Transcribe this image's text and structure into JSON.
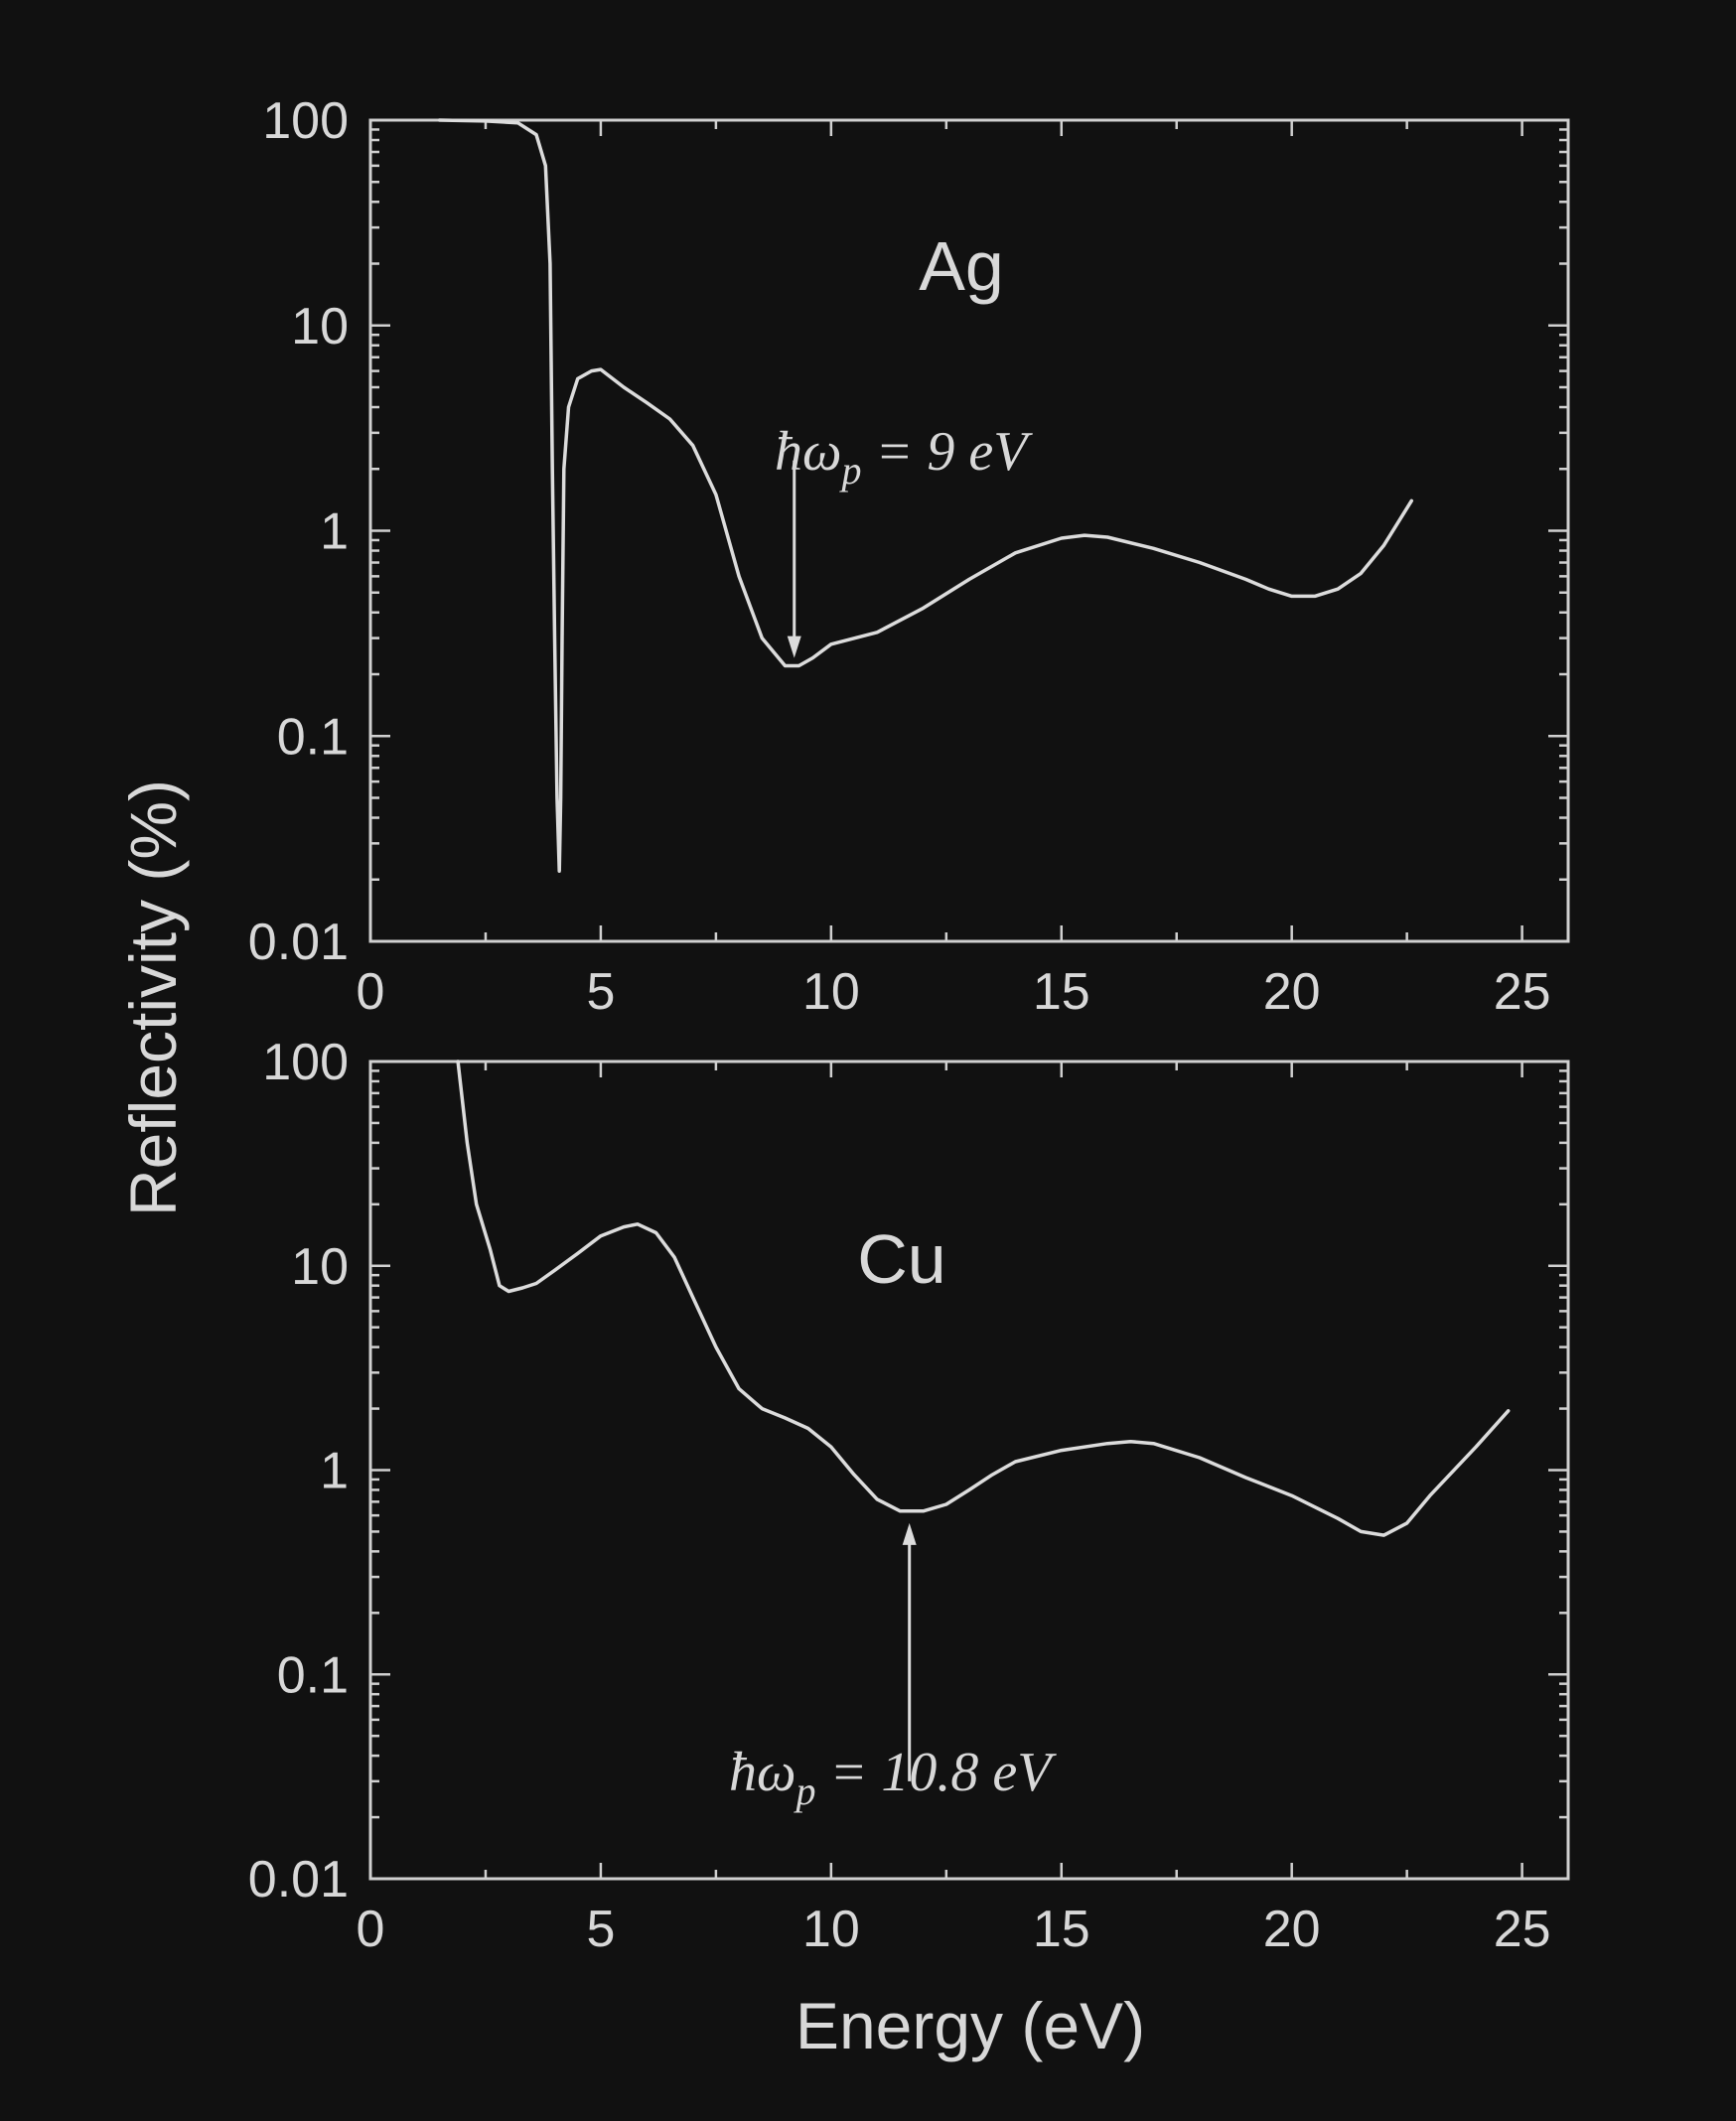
{
  "chart_data": [
    {
      "type": "line",
      "title": "",
      "panel_label": "Ag",
      "xlabel": "Energy (eV)",
      "ylabel": "Reflectivity (%)",
      "xlim": [
        0,
        26
      ],
      "ylim": [
        0.01,
        100
      ],
      "yscale": "log",
      "grid": false,
      "xticks": [
        "0",
        "5",
        "10",
        "15",
        "20",
        "25"
      ],
      "yticks": [
        "0.01",
        "0.1",
        "1",
        "10",
        "100"
      ],
      "annotation": {
        "text_main": "ħω",
        "text_sub": "p",
        "text_rest": " = 9 eV",
        "x": 9.2,
        "y_tip": 0.24,
        "y_tail": 2.2
      },
      "series": [
        {
          "x": [
            1.5,
            2.5,
            3.2,
            3.6,
            3.8,
            3.9,
            3.95,
            4.0,
            4.05,
            4.1,
            4.13,
            4.16,
            4.2,
            4.3,
            4.5,
            4.8,
            5.0,
            5.5,
            6.0,
            6.5,
            7.0,
            7.5,
            8.0,
            8.5,
            9.0,
            9.3,
            9.6,
            10.0,
            11.0,
            12.0,
            13.0,
            14.0,
            15.0,
            15.5,
            16.0,
            17.0,
            18.0,
            19.0,
            19.5,
            20.0,
            20.5,
            21.0,
            21.5,
            22.0,
            22.6
          ],
          "y": [
            100,
            99,
            97,
            85,
            60,
            20,
            2.0,
            0.3,
            0.05,
            0.022,
            0.05,
            0.3,
            2.0,
            4.0,
            5.5,
            6.0,
            6.1,
            5.0,
            4.2,
            3.5,
            2.6,
            1.5,
            0.6,
            0.3,
            0.22,
            0.22,
            0.24,
            0.28,
            0.32,
            0.42,
            0.58,
            0.78,
            0.92,
            0.95,
            0.93,
            0.82,
            0.7,
            0.58,
            0.52,
            0.48,
            0.48,
            0.52,
            0.62,
            0.85,
            1.4
          ]
        }
      ]
    },
    {
      "type": "line",
      "title": "",
      "panel_label": "Cu",
      "xlabel": "Energy (eV)",
      "ylabel": "Reflectivity (%)",
      "xlim": [
        0,
        26
      ],
      "ylim": [
        0.01,
        100
      ],
      "yscale": "log",
      "grid": false,
      "xticks": [
        "0",
        "5",
        "10",
        "15",
        "20",
        "25"
      ],
      "yticks": [
        "0.01",
        "0.1",
        "1",
        "10",
        "100"
      ],
      "annotation": {
        "text_main": "ħω",
        "text_sub": "p",
        "text_rest": " = 10.8 eV",
        "x": 11.7,
        "y_tip": 0.55,
        "y_tail": 0.03
      },
      "series": [
        {
          "x": [
            1.9,
            2.1,
            2.3,
            2.6,
            2.8,
            3.0,
            3.3,
            3.6,
            4.0,
            4.5,
            5.0,
            5.5,
            5.8,
            6.2,
            6.6,
            7.0,
            7.5,
            8.0,
            8.5,
            9.0,
            9.5,
            10.0,
            10.5,
            11.0,
            11.5,
            12.0,
            12.5,
            13.0,
            13.5,
            14.0,
            15.0,
            16.0,
            16.5,
            17.0,
            18.0,
            19.0,
            20.0,
            21.0,
            21.5,
            22.0,
            22.5,
            23.0,
            24.0,
            24.7
          ],
          "y": [
            100,
            40,
            20,
            12,
            8.0,
            7.5,
            7.8,
            8.2,
            9.5,
            11.5,
            14.0,
            15.5,
            16.0,
            14.5,
            11.0,
            7.0,
            4.0,
            2.5,
            2.0,
            1.8,
            1.6,
            1.3,
            0.95,
            0.72,
            0.63,
            0.63,
            0.68,
            0.8,
            0.95,
            1.1,
            1.25,
            1.35,
            1.38,
            1.35,
            1.15,
            0.92,
            0.75,
            0.58,
            0.5,
            0.48,
            0.55,
            0.75,
            1.3,
            1.95
          ]
        }
      ]
    }
  ]
}
